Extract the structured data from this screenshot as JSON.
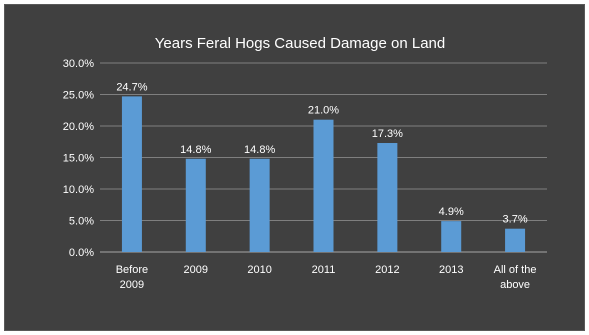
{
  "chart_data": {
    "type": "bar",
    "title": "Years Feral Hogs Caused Damage on Land",
    "categories": [
      [
        "Before",
        "2009"
      ],
      [
        "2009"
      ],
      [
        "2010"
      ],
      [
        "2011"
      ],
      [
        "2012"
      ],
      [
        "2013"
      ],
      [
        "All of the",
        "above"
      ]
    ],
    "values": [
      24.7,
      14.8,
      14.8,
      21.0,
      17.3,
      4.9,
      3.7
    ],
    "data_labels": [
      "24.7%",
      "14.8%",
      "14.8%",
      "21.0%",
      "17.3%",
      "4.9%",
      "3.7%"
    ],
    "ylim": [
      0,
      30
    ],
    "yticks": [
      0,
      5,
      10,
      15,
      20,
      25,
      30
    ],
    "ytick_labels": [
      "0.0%",
      "5.0%",
      "10.0%",
      "15.0%",
      "20.0%",
      "25.0%",
      "30.0%"
    ],
    "xlabel": "",
    "ylabel": "",
    "grid": true,
    "legend": "none",
    "colors": {
      "background": "#404040",
      "bar": "#5b9bd5",
      "grid": "#7f7f7f",
      "text": "#ffffff"
    }
  }
}
